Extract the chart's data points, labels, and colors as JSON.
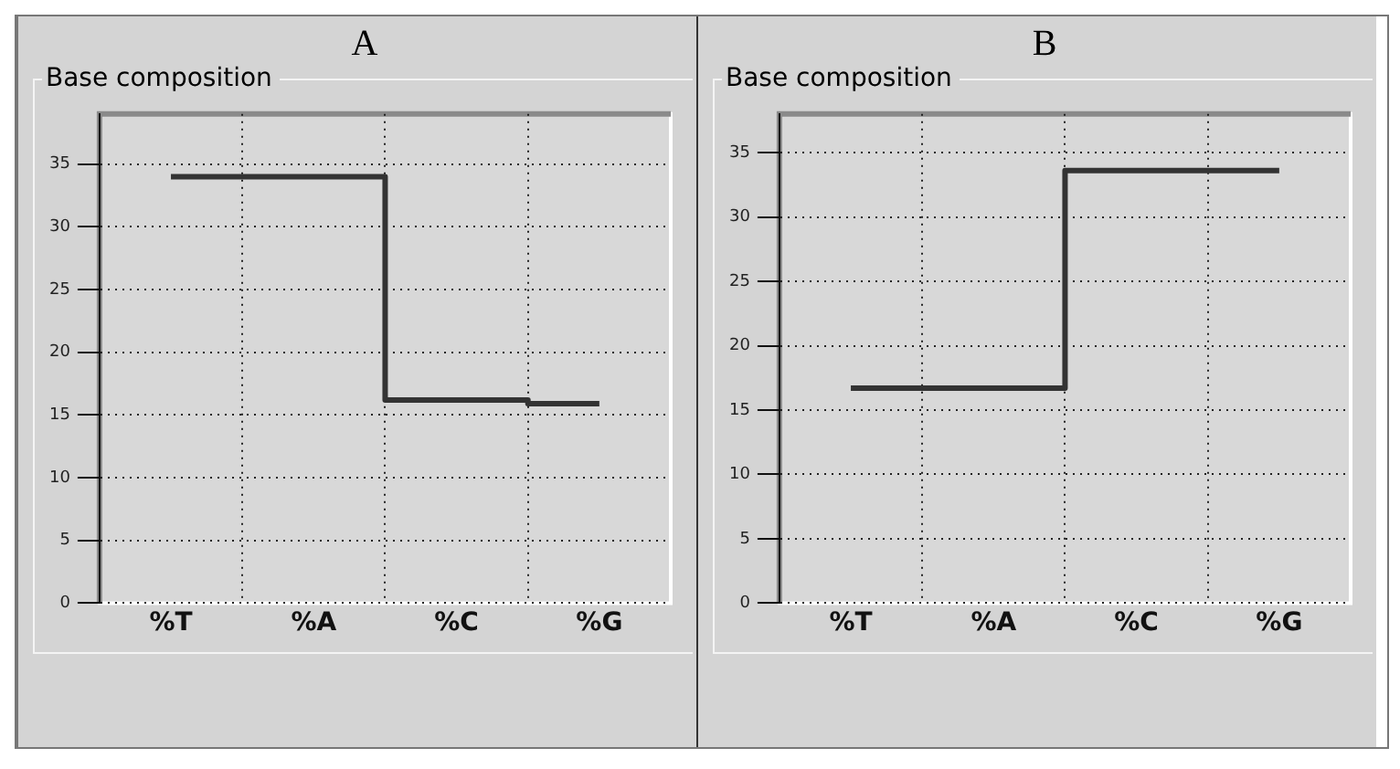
{
  "chart_data": [
    {
      "type": "step",
      "title": "A",
      "subtitle": "Base composition",
      "categories": [
        "%T",
        "%A",
        "%C",
        "%G"
      ],
      "values": [
        34.0,
        34.0,
        16.2,
        15.9
      ],
      "color": "#333333",
      "ylim": [
        0,
        39
      ],
      "yticks": [
        0,
        5,
        10,
        15,
        20,
        25,
        30,
        35
      ],
      "grid": true
    },
    {
      "type": "step",
      "title": "B",
      "subtitle": "Base composition",
      "categories": [
        "%T",
        "%A",
        "%C",
        "%G"
      ],
      "values": [
        16.7,
        16.7,
        33.6,
        33.6
      ],
      "color": "#333333",
      "ylim": [
        0,
        38
      ],
      "yticks": [
        0,
        5,
        10,
        15,
        20,
        25,
        30,
        35
      ],
      "grid": true
    }
  ]
}
